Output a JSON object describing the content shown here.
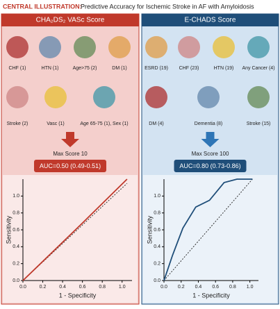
{
  "header": {
    "label": "CENTRAL ILLUSTRATION:",
    "title": "Predictive Accuracy for Ischemic Stroke in AF with Amyloidosis"
  },
  "panels": [
    {
      "title": "CHA₂DS₂ VASc Score",
      "factors": [
        "CHF (1)",
        "HTN (1)",
        "Age>75 (2)",
        "DM (1)",
        "Stroke (2)",
        "Vasc (1)",
        "Age 65-75 (1), Sex (1)"
      ],
      "max_score": "Max Score 10",
      "auc": "AUC=0.50 (0.49-0.51)"
    },
    {
      "title": "E-CHADS Score",
      "factors": [
        "ESRD (19)",
        "CHF (23)",
        "HTN (19)",
        "Any Cancer (4)",
        "DM (4)",
        "Dementia (8)",
        "Stroke (15)"
      ],
      "max_score": "Max Score 100",
      "auc": "AUC=0.80 (0.73-0.86)"
    }
  ],
  "chart_data": [
    {
      "type": "line",
      "xlabel": "1 - Specificity",
      "ylabel": "Sensitivity",
      "xlim": [
        0,
        1.1
      ],
      "ylim": [
        0,
        1.2
      ],
      "xticks": [
        {
          "value": 0,
          "label": "0.0"
        },
        {
          "value": 0.2,
          "label": "0.2"
        },
        {
          "value": 0.4,
          "label": "0.4"
        },
        {
          "value": 0.6,
          "label": "0.6"
        },
        {
          "value": 0.8,
          "label": "0.8"
        },
        {
          "value": 1,
          "label": "1.0"
        }
      ],
      "yticks": [
        {
          "value": 0,
          "label": "0.0"
        },
        {
          "value": 0.2,
          "label": "0.2"
        },
        {
          "value": 0.4,
          "label": "0.4"
        },
        {
          "value": 0.6,
          "label": "0.6"
        },
        {
          "value": 0.8,
          "label": "0.8"
        },
        {
          "value": 1,
          "label": "1.0"
        }
      ],
      "series": [
        {
          "color": "#333333",
          "dash": true,
          "x": [
            0,
            1.05
          ],
          "values": [
            0,
            1.15
          ]
        },
        {
          "color": "#c0392b",
          "dash": false,
          "x": [
            0,
            0.3,
            0.6,
            1.05
          ],
          "values": [
            0,
            0.34,
            0.68,
            1.2
          ]
        }
      ]
    },
    {
      "type": "line",
      "xlabel": "1 - Specificity",
      "ylabel": "Sensitivity",
      "xlim": [
        0,
        1.1
      ],
      "ylim": [
        0,
        1.2
      ],
      "xticks": [
        {
          "value": 0,
          "label": "0.0"
        },
        {
          "value": 0.2,
          "label": "0.2"
        },
        {
          "value": 0.4,
          "label": "0.4"
        },
        {
          "value": 0.6,
          "label": "0.6"
        },
        {
          "value": 0.8,
          "label": "0.8"
        },
        {
          "value": 1,
          "label": "1.0"
        }
      ],
      "yticks": [
        {
          "value": 0,
          "label": "0.0"
        },
        {
          "value": 0.2,
          "label": "0.2"
        },
        {
          "value": 0.4,
          "label": "0.4"
        },
        {
          "value": 0.6,
          "label": "0.6"
        },
        {
          "value": 0.8,
          "label": "0.8"
        },
        {
          "value": 1,
          "label": "1.0"
        }
      ],
      "series": [
        {
          "color": "#333333",
          "dash": true,
          "x": [
            0,
            1.03
          ],
          "values": [
            0,
            1.2
          ]
        },
        {
          "color": "#1f4e79",
          "dash": false,
          "x": [
            0,
            0.1,
            0.22,
            0.37,
            0.53,
            0.7,
            0.85,
            1.03
          ],
          "values": [
            0,
            0.3,
            0.62,
            0.87,
            0.95,
            1.16,
            1.2,
            1.2
          ]
        }
      ]
    }
  ]
}
